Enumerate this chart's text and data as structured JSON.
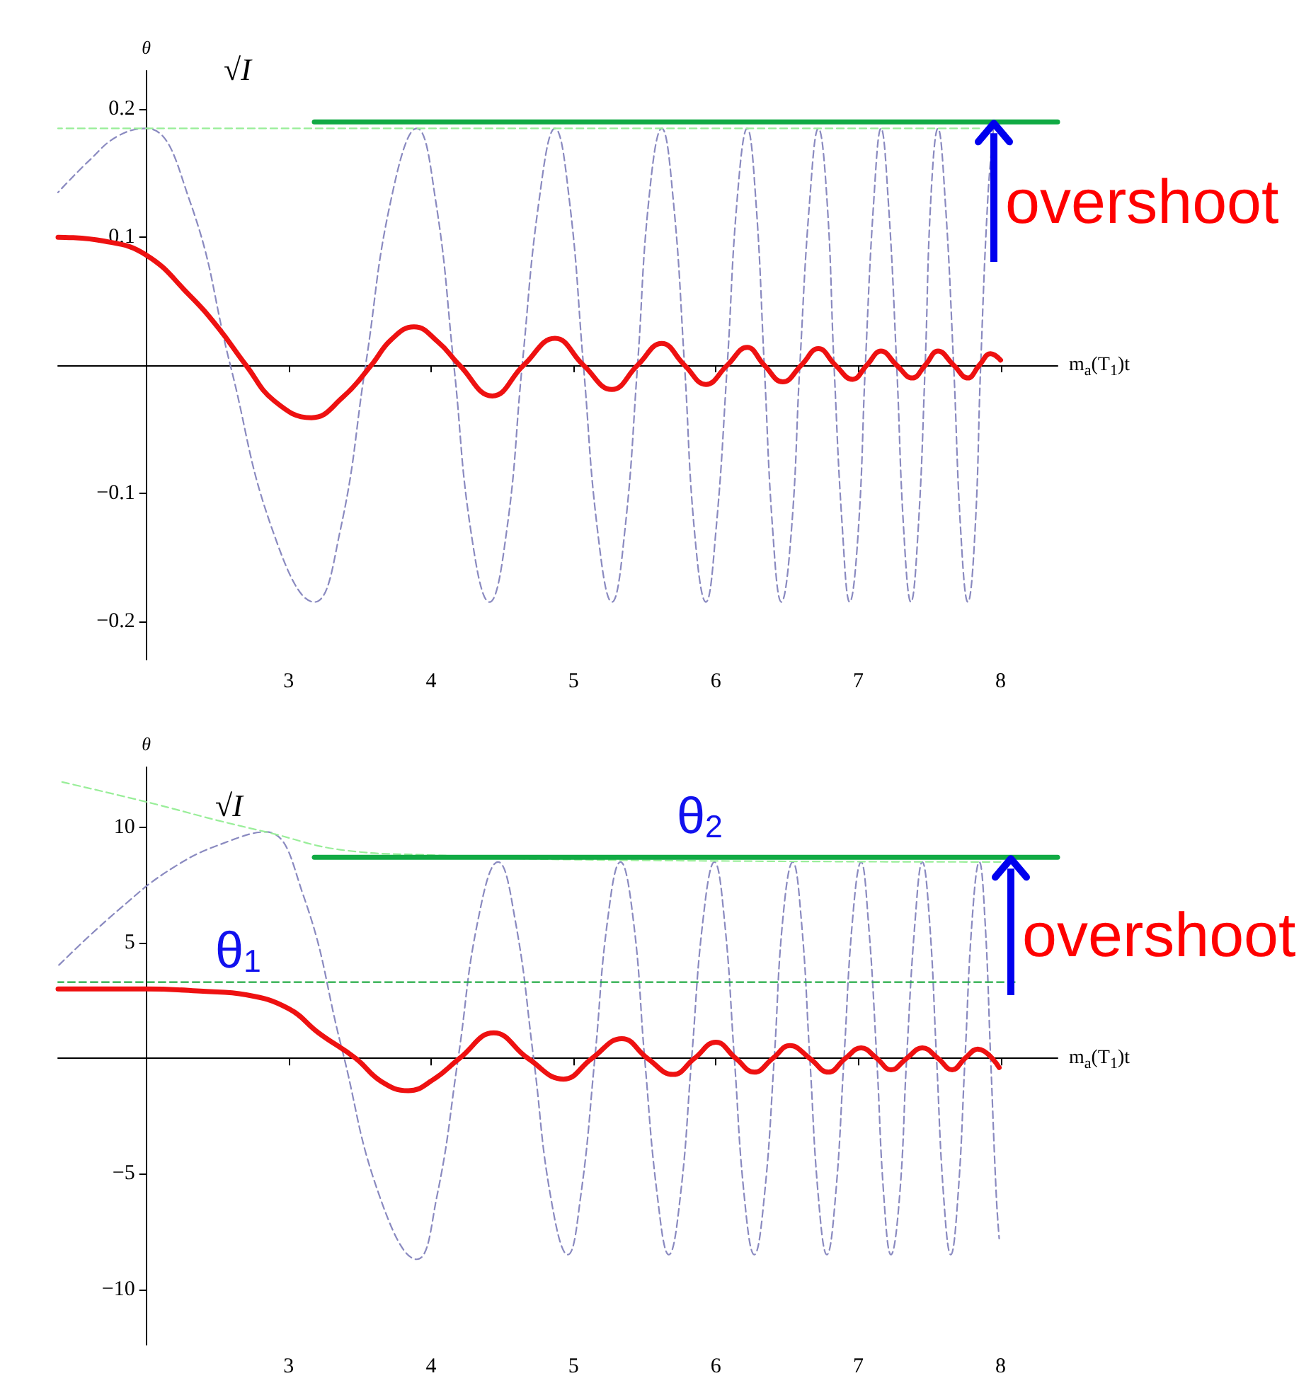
{
  "chart_data": [
    {
      "type": "line",
      "ylabel": "θ",
      "xlabel": "m$_{a}$(T$_{1}$)t",
      "xlim": [
        1.38,
        8.4
      ],
      "ylim": [
        -0.23,
        0.23
      ],
      "marker": "none",
      "xticks": [
        {
          "value": 2,
          "label": null
        },
        3,
        4,
        5,
        6,
        7,
        8
      ],
      "yticks": [
        {
          "value": -0.2,
          "label": "−0.2"
        },
        {
          "value": -0.1,
          "label": "−0.1"
        },
        {
          "value": 0,
          "label": null
        },
        0.1,
        0.2
      ],
      "annotations": [
        "overshoot",
        "√I"
      ],
      "series": [
        {
          "color": "#8a8ac0",
          "line_style": "dashed",
          "x": [
            1.38,
            1.6,
            1.8,
            2.0,
            2.3,
            2.59,
            2.89,
            3.18,
            3.36,
            3.54,
            3.72,
            3.9,
            4.03,
            4.16,
            4.28,
            4.41,
            4.53,
            4.64,
            4.76,
            4.87,
            4.97,
            5.07,
            5.17,
            5.27,
            5.36,
            5.45,
            5.53,
            5.62,
            5.7,
            5.78,
            5.85,
            5.93,
            6.0,
            6.08,
            6.15,
            6.22,
            6.28,
            6.34,
            6.4,
            6.46,
            6.53,
            6.59,
            6.66,
            6.72,
            6.78,
            6.83,
            6.89,
            6.94,
            7.0,
            7.05,
            7.11,
            7.16,
            7.21,
            7.27,
            7.32,
            7.37,
            7.42,
            7.47,
            7.51,
            7.56,
            7.61,
            7.67,
            7.72,
            7.77,
            7.82,
            7.86,
            7.91,
            7.95
          ],
          "values": [
            0.135,
            0.16,
            0.179,
            0.185,
            0.13,
            0,
            -0.13,
            -0.185,
            -0.13,
            0,
            0.13,
            0.185,
            0.13,
            0,
            -0.13,
            -0.185,
            -0.13,
            0,
            0.13,
            0.185,
            0.13,
            0,
            -0.13,
            -0.185,
            -0.13,
            0,
            0.13,
            0.185,
            0.13,
            0,
            -0.13,
            -0.185,
            -0.13,
            0,
            0.13,
            0.185,
            0.13,
            0,
            -0.13,
            -0.185,
            -0.13,
            0,
            0.13,
            0.185,
            0.13,
            0,
            -0.13,
            -0.185,
            -0.13,
            0,
            0.13,
            0.185,
            0.13,
            0,
            -0.13,
            -0.185,
            -0.13,
            0,
            0.13,
            0.185,
            0.13,
            0,
            -0.13,
            -0.185,
            -0.13,
            0,
            0.13,
            0.185
          ]
        },
        {
          "color": "#99ee99",
          "line_style": "dashed",
          "x": [
            1.38,
            7.85
          ],
          "values": [
            0.185,
            0.185
          ]
        },
        {
          "color": "#ee1111",
          "line_style": "solid",
          "x": [
            1.38,
            1.7,
            2.0,
            2.3,
            2.5,
            2.7,
            2.9,
            3.16,
            3.38,
            3.58,
            3.72,
            3.88,
            4.05,
            4.2,
            4.43,
            4.65,
            4.87,
            5.07,
            5.27,
            5.45,
            5.62,
            5.78,
            5.93,
            6.08,
            6.22,
            6.34,
            6.47,
            6.6,
            6.72,
            6.84,
            6.96,
            7.06,
            7.16,
            7.27,
            7.38,
            7.47,
            7.56,
            7.67,
            7.77,
            7.85,
            7.93,
            8.0
          ],
          "values": [
            0.1,
            0.097,
            0.086,
            0.055,
            0.03,
            0,
            -0.028,
            -0.041,
            -0.025,
            0,
            0.02,
            0.03,
            0.018,
            0,
            -0.024,
            0,
            0.021,
            0,
            -0.019,
            0,
            0.017,
            0,
            -0.015,
            0,
            0.014,
            0,
            -0.013,
            0,
            0.013,
            0,
            -0.011,
            0,
            0.011,
            0,
            -0.01,
            0,
            0.011,
            0,
            -0.01,
            0,
            0.009,
            0.004
          ]
        },
        {
          "color": "#11aa44",
          "line_style": "solid",
          "x": [
            3.18,
            8.4
          ],
          "values": [
            0.19,
            0.19
          ]
        }
      ]
    },
    {
      "type": "line",
      "ylabel": "θ",
      "xlabel": "m$_{a}$(T$_{1}$)t",
      "xlim": [
        1.38,
        8.4
      ],
      "ylim": [
        -12.4,
        12.6
      ],
      "marker": "none",
      "xticks": [
        {
          "value": 2,
          "label": null
        },
        3,
        4,
        5,
        6,
        7,
        8
      ],
      "yticks": [
        {
          "value": -10,
          "label": "−10"
        },
        {
          "value": -5,
          "label": "−5"
        },
        {
          "value": 0,
          "label": null
        },
        5,
        10
      ],
      "annotations": [
        "overshoot",
        "√I",
        "θ$_{1}$",
        "θ$_{2}$"
      ],
      "series": [
        {
          "color": "#8a8ac0",
          "line_style": "dashed",
          "x": [
            1.38,
            1.8,
            2.2,
            2.58,
            2.84,
            3.1,
            3.37,
            3.64,
            3.9,
            4.04,
            4.19,
            4.33,
            4.47,
            4.59,
            4.72,
            4.84,
            4.96,
            5.05,
            5.15,
            5.24,
            5.33,
            5.42,
            5.5,
            5.59,
            5.67,
            5.75,
            5.83,
            5.91,
            5.99,
            6.06,
            6.13,
            6.2,
            6.27,
            6.34,
            6.41,
            6.47,
            6.54,
            6.6,
            6.66,
            6.72,
            6.78,
            6.84,
            6.9,
            6.96,
            7.02,
            7.07,
            7.13,
            7.18,
            7.23,
            7.29,
            7.34,
            7.4,
            7.45,
            7.5,
            7.55,
            7.6,
            7.65,
            7.7,
            7.75,
            7.8,
            7.85,
            7.89,
            7.93,
            7.97,
            7.99
          ],
          "values": [
            4.0,
            6.4,
            8.3,
            9.4,
            9.8,
            7.1,
            0.5,
            -6.0,
            -8.7,
            -6.0,
            0,
            6.0,
            8.5,
            6.0,
            0,
            -6.0,
            -8.5,
            -6.0,
            0,
            6.0,
            8.5,
            6.0,
            0,
            -6.0,
            -8.5,
            -6.0,
            0,
            6.0,
            8.5,
            6.0,
            0,
            -6.0,
            -8.5,
            -6.0,
            0,
            6.0,
            8.5,
            6.0,
            0,
            -6.0,
            -8.5,
            -6.0,
            0,
            6.0,
            8.5,
            6.0,
            0,
            -6.0,
            -8.5,
            -6.0,
            0,
            6.0,
            8.5,
            6.0,
            0,
            -6.0,
            -8.5,
            -6.0,
            0,
            6.0,
            8.5,
            6.0,
            0,
            -6.0,
            -7.8
          ]
        },
        {
          "color": "#99ee99",
          "line_style": "dashed",
          "x": [
            1.38,
            2.0,
            2.5,
            2.84,
            3.4,
            4.0,
            5.0,
            8.0
          ],
          "values": [
            12.0,
            11.1,
            10.3,
            9.8,
            9.0,
            8.8,
            8.6,
            8.5
          ]
        },
        {
          "color": "#22aa44",
          "line_style": "dashed",
          "x": [
            1.38,
            8.1
          ],
          "values": [
            3.3,
            3.3
          ]
        },
        {
          "color": "#ee1111",
          "line_style": "solid",
          "x": [
            1.38,
            2.0,
            2.4,
            2.7,
            3.0,
            3.21,
            3.47,
            3.65,
            3.84,
            4.02,
            4.2,
            4.44,
            4.68,
            4.93,
            5.13,
            5.34,
            5.52,
            5.7,
            5.85,
            6.0,
            6.14,
            6.27,
            6.4,
            6.52,
            6.66,
            6.79,
            6.91,
            7.02,
            7.13,
            7.23,
            7.34,
            7.45,
            7.56,
            7.66,
            7.75,
            7.84,
            7.99
          ],
          "values": [
            3.0,
            3.0,
            2.9,
            2.75,
            2.15,
            1.1,
            0,
            -1.0,
            -1.4,
            -0.9,
            0,
            1.1,
            0,
            -0.9,
            0,
            0.85,
            0,
            -0.7,
            0,
            0.7,
            0,
            -0.6,
            0,
            0.55,
            0,
            -0.6,
            0,
            0.45,
            0,
            -0.5,
            0,
            0.45,
            0,
            -0.5,
            0,
            0.4,
            -0.4
          ]
        },
        {
          "color": "#11aa44",
          "line_style": "solid",
          "x": [
            3.18,
            8.4
          ],
          "values": [
            8.7,
            8.7
          ]
        }
      ]
    }
  ]
}
